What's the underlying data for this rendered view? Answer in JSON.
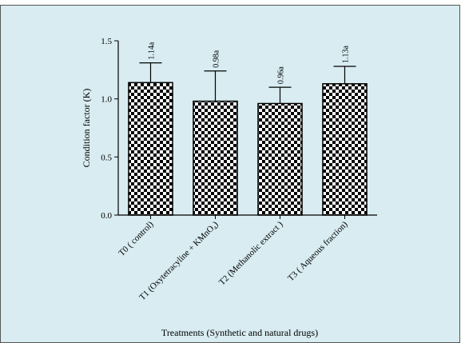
{
  "chart_data": {
    "type": "bar",
    "x_label": "Treatments (Synthetic and natural drugs)",
    "y_label": "Condition factor (K)",
    "categories": [
      "T0 ( control)",
      "T1 (Oxytetracyline + KMnO₄)",
      "T2 (Methanolic extract )",
      "T3 ( Aqueous fraction)"
    ],
    "values": [
      1.14,
      0.98,
      0.96,
      1.13
    ],
    "value_labels": [
      "1.14a",
      "0.98a",
      "0.96a",
      "1.13a"
    ],
    "errors": [
      0.17,
      0.26,
      0.14,
      0.15
    ],
    "ylim": [
      0,
      1.5
    ],
    "yticks": [
      {
        "value": 0,
        "label": "0.0"
      },
      0.5,
      {
        "value": 1,
        "label": "1.0"
      },
      {
        "value": 1.5,
        "label": "1.5"
      }
    ],
    "color": "#000000"
  }
}
